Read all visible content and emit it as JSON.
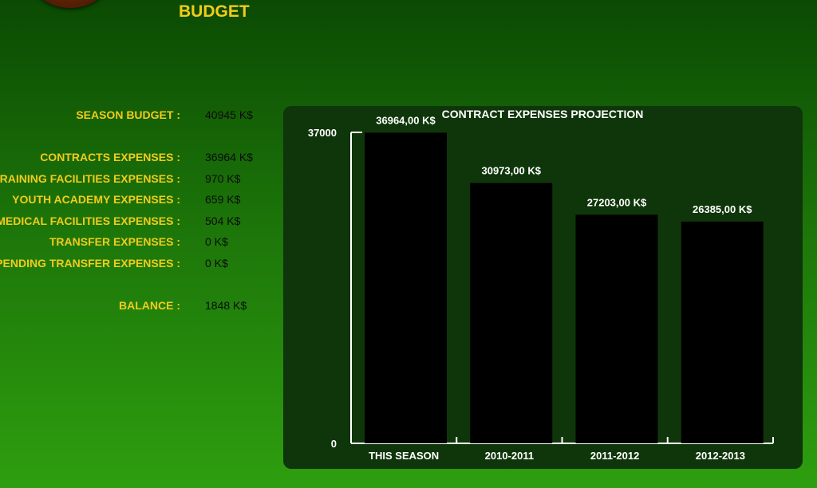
{
  "header": {
    "title": "BUDGET"
  },
  "summary": {
    "rows": [
      {
        "label": "SEASON BUDGET :",
        "value": "40945 K$"
      },
      {
        "label": "CONTRACTS EXPENSES :",
        "value": "36964 K$"
      },
      {
        "label": "TRAINING FACILITIES EXPENSES :",
        "value": "970 K$"
      },
      {
        "label": "YOUTH ACADEMY EXPENSES :",
        "value": "659 K$"
      },
      {
        "label": "MEDICAL FACILITIES EXPENSES :",
        "value": "504 K$"
      },
      {
        "label": "TRANSFER EXPENSES :",
        "value": "0 K$"
      },
      {
        "label": "PENDING TRANSFER EXPENSES :",
        "value": "0 K$"
      },
      {
        "label": "BALANCE :",
        "value": "1848 K$"
      }
    ]
  },
  "colors": {
    "accent": "#f2cb1b",
    "panel": "#0f360a",
    "bar": "#000000",
    "axis": "#ffffff"
  },
  "chart_data": {
    "type": "bar",
    "title": "CONTRACT EXPENSES PROJECTION",
    "categories": [
      "THIS SEASON",
      "2010-2011",
      "2011-2012",
      "2012-2013"
    ],
    "values": [
      36964,
      30973,
      27203,
      26385
    ],
    "data_labels": [
      "36964,00 K$",
      "30973,00 K$",
      "27203,00 K$",
      "26385,00 K$"
    ],
    "ylim": [
      0,
      37000
    ],
    "y_tick_labels": [
      "0",
      "37000"
    ],
    "xlabel": "",
    "ylabel": "",
    "grid": false,
    "legend": "none"
  }
}
